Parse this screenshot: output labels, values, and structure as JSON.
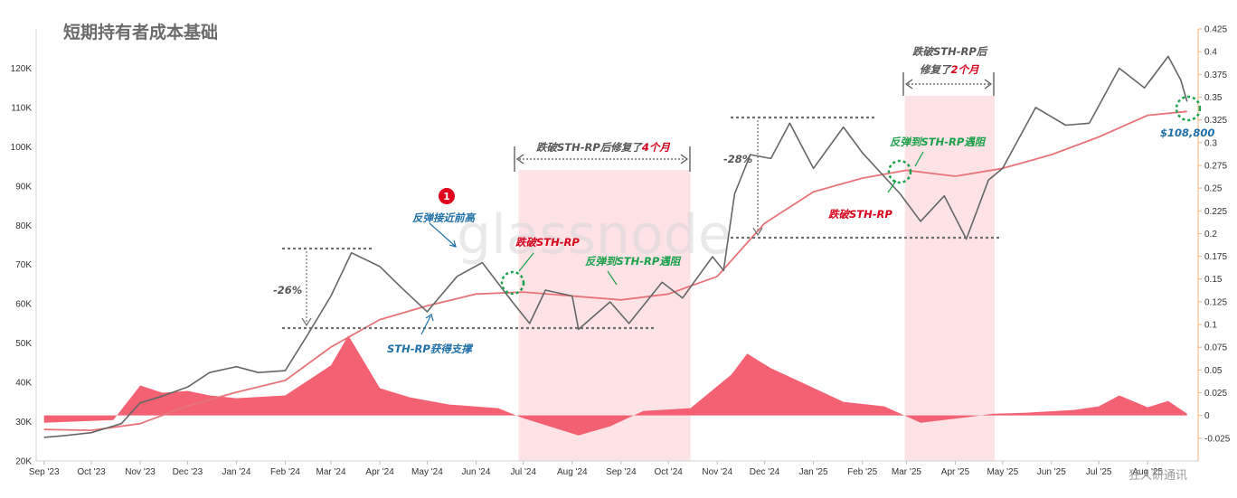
{
  "chart_data": {
    "type": "line",
    "title": "短期持有者成本基础",
    "x": [
      "2023-09",
      "2023-10",
      "2023-11",
      "2023-12",
      "2024-01",
      "2024-02",
      "2024-03",
      "2024-04",
      "2024-05",
      "2024-06",
      "2024-07",
      "2024-08",
      "2024-09",
      "2024-10",
      "2024-11",
      "2024-12",
      "2025-01",
      "2025-02",
      "2025-03",
      "2025-04",
      "2025-05",
      "2025-06",
      "2025-07",
      "2025-08"
    ],
    "x_tick_labels": [
      "Sep '23",
      "Oct '23",
      "Nov '23",
      "Dec '23",
      "Jan '24",
      "Feb '24",
      "Mar '24",
      "Apr '24",
      "May '24",
      "Jun '24",
      "Jul '24",
      "Aug '24",
      "Sep '24",
      "Oct '24",
      "Nov '24",
      "Dec '24",
      "Jan '25",
      "Feb '25",
      "Mar '25",
      "Apr '25",
      "May '25",
      "Jun '25",
      "Jul '25",
      "Aug '25"
    ],
    "y_left": {
      "ticks": [
        "20K",
        "30K",
        "40K",
        "50K",
        "60K",
        "70K",
        "80K",
        "90K",
        "100K",
        "110K",
        "120K"
      ],
      "ylim": [
        20000,
        130000
      ]
    },
    "y_right": {
      "ticks": [
        "-0.025",
        "0",
        "0.025",
        "0.05",
        "0.075",
        "0.1",
        "0.125",
        "0.15",
        "0.175",
        "0.2",
        "0.225",
        "0.25",
        "0.275",
        "0.3",
        "0.325",
        "0.35",
        "0.375",
        "0.4",
        "0.425"
      ],
      "ylim": [
        -0.05,
        0.425
      ]
    },
    "grid": false,
    "series": [
      {
        "axis": "left",
        "style": "line",
        "color": "#666666",
        "x": [
          "2023-09-01",
          "2023-09-15",
          "2023-10-01",
          "2023-10-20",
          "2023-11-01",
          "2023-11-15",
          "2023-12-01",
          "2023-12-15",
          "2024-01-01",
          "2024-01-15",
          "2024-02-01",
          "2024-02-15",
          "2024-03-01",
          "2024-03-14",
          "2024-04-01",
          "2024-04-15",
          "2024-05-01",
          "2024-05-20",
          "2024-06-05",
          "2024-06-24",
          "2024-07-05",
          "2024-07-15",
          "2024-08-01",
          "2024-08-05",
          "2024-08-25",
          "2024-09-06",
          "2024-09-27",
          "2024-10-10",
          "2024-10-29",
          "2024-11-05",
          "2024-11-12",
          "2024-11-22",
          "2024-12-05",
          "2024-12-17",
          "2025-01-01",
          "2025-01-20",
          "2025-02-01",
          "2025-02-25",
          "2025-03-10",
          "2025-03-25",
          "2025-04-08",
          "2025-04-22",
          "2025-05-01",
          "2025-05-22",
          "2025-06-10",
          "2025-06-25",
          "2025-07-14",
          "2025-07-30",
          "2025-08-14",
          "2025-08-22",
          "2025-08-26"
        ],
        "values": [
          26000,
          26500,
          27200,
          29500,
          34800,
          36500,
          38800,
          42500,
          44000,
          42500,
          43000,
          52000,
          62000,
          73000,
          69500,
          64000,
          58000,
          67000,
          70500,
          60500,
          55000,
          63500,
          62000,
          53500,
          60500,
          55000,
          65500,
          61500,
          72000,
          68500,
          88000,
          98000,
          97000,
          106000,
          94500,
          105000,
          98500,
          88000,
          81000,
          87500,
          76500,
          91500,
          94500,
          110000,
          105500,
          106000,
          120000,
          115000,
          123000,
          117000,
          111500
        ]
      },
      {
        "axis": "left",
        "style": "line",
        "color": "#e8747a",
        "x": [
          "2023-09-01",
          "2023-10-01",
          "2023-11-01",
          "2023-12-01",
          "2024-01-01",
          "2024-02-01",
          "2024-03-01",
          "2024-04-01",
          "2024-05-01",
          "2024-06-01",
          "2024-07-01",
          "2024-08-01",
          "2024-09-01",
          "2024-10-01",
          "2024-11-01",
          "2024-12-01",
          "2025-01-01",
          "2025-02-01",
          "2025-03-01",
          "2025-04-01",
          "2025-05-01",
          "2025-06-01",
          "2025-07-01",
          "2025-08-01",
          "2025-08-26"
        ],
        "values": [
          28000,
          27800,
          29500,
          34000,
          37500,
          40500,
          49000,
          56000,
          59500,
          62500,
          63000,
          62000,
          61000,
          62500,
          67000,
          80500,
          88500,
          92000,
          94000,
          92500,
          94500,
          98000,
          102500,
          108000,
          109000
        ]
      },
      {
        "axis": "right",
        "style": "area",
        "color": "#f2596b",
        "x": [
          "2023-09-01",
          "2023-10-15",
          "2023-11-01",
          "2023-11-15",
          "2023-12-01",
          "2023-12-15",
          "2024-01-01",
          "2024-02-01",
          "2024-03-01",
          "2024-03-12",
          "2024-04-01",
          "2024-04-20",
          "2024-05-15",
          "2024-06-15",
          "2024-07-01",
          "2024-08-05",
          "2024-08-25",
          "2024-09-15",
          "2024-10-15",
          "2024-11-10",
          "2024-11-20",
          "2024-12-05",
          "2024-12-20",
          "2025-01-20",
          "2025-02-15",
          "2025-03-10",
          "2025-04-08",
          "2025-04-25",
          "2025-05-15",
          "2025-06-15",
          "2025-07-01",
          "2025-07-14",
          "2025-08-01",
          "2025-08-14",
          "2025-08-26"
        ],
        "values": [
          -0.008,
          -0.005,
          0.033,
          0.025,
          0.027,
          0.022,
          0.019,
          0.022,
          0.055,
          0.088,
          0.03,
          0.02,
          0.012,
          0.008,
          -0.003,
          -0.022,
          -0.012,
          0.005,
          0.008,
          0.045,
          0.068,
          0.052,
          0.04,
          0.015,
          0.01,
          -0.008,
          -0.002,
          0.002,
          0.003,
          0.006,
          0.01,
          0.022,
          0.009,
          0.016,
          0.002
        ]
      }
    ],
    "annotations": {
      "badge": "1",
      "rebound_near_high": "反弹接近前高",
      "sth_support": "STH-RP获得支撑",
      "drop_26": "-26%",
      "break_1": "跌破STH-RP",
      "resist_1": "反弹到STH-RP遇阻",
      "recover_4": "跌破STH-RP后修复了",
      "recover_4_em": "4个月",
      "drop_28": "-28%",
      "break_2": "跌破STH-RP",
      "resist_2": "反弹到STH-RP遇阻",
      "recover_2_top": "跌破STH-RP后",
      "recover_2_bottom": "修复了",
      "recover_2_em": "2个月",
      "price": "$108,800"
    },
    "watermark": "glassnode",
    "credit": "狂人研通讯"
  },
  "colors": {
    "price_line": "#666666",
    "sth_line": "#e8747a",
    "area": "#f2596b",
    "shade": "#fde3e6",
    "green": "#1aa04a",
    "blue": "#1f6fa8",
    "red": "#d6001c",
    "orange_axis": "#f3b27a"
  }
}
